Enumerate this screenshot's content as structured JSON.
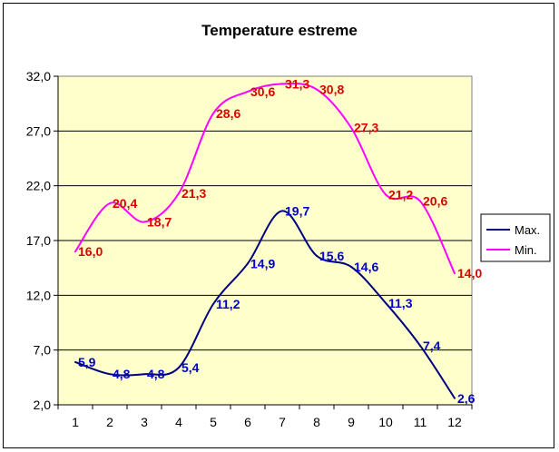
{
  "chart_data": {
    "type": "line",
    "title": "Temperature estreme",
    "xlabel": "",
    "ylabel": "",
    "categories": [
      "1",
      "2",
      "3",
      "4",
      "5",
      "6",
      "7",
      "8",
      "9",
      "10",
      "11",
      "12"
    ],
    "y_ticks": [
      "2,0",
      "7,0",
      "12,0",
      "17,0",
      "22,0",
      "27,0",
      "32,0"
    ],
    "ylim": [
      2,
      32
    ],
    "y_tick_values": [
      2,
      7,
      12,
      17,
      22,
      27,
      32
    ],
    "grid": "horizontal",
    "plot_background": "#FFFFCC",
    "legend_position": "right",
    "smooth": true,
    "series": [
      {
        "name": "Max.",
        "color": "#000080",
        "label_color": "#0000CC",
        "values": [
          5.9,
          4.8,
          4.8,
          5.4,
          11.2,
          14.9,
          19.7,
          15.6,
          14.6,
          11.3,
          7.4,
          2.6
        ],
        "labels": [
          "5,9",
          "4,8",
          "4,8",
          "5,4",
          "11,2",
          "14,9",
          "19,7",
          "15,6",
          "14,6",
          "11,3",
          "7,4",
          "2,6"
        ]
      },
      {
        "name": "Min.",
        "color": "#FF00FF",
        "label_color": "#DD0000",
        "values": [
          16.0,
          20.4,
          18.7,
          21.3,
          28.6,
          30.6,
          31.3,
          30.8,
          27.3,
          21.2,
          20.6,
          14.0
        ],
        "labels": [
          "16,0",
          "20,4",
          "18,7",
          "21,3",
          "28,6",
          "30,6",
          "31,3",
          "30,8",
          "27,3",
          "21,2",
          "20,6",
          "14,0"
        ]
      }
    ]
  }
}
